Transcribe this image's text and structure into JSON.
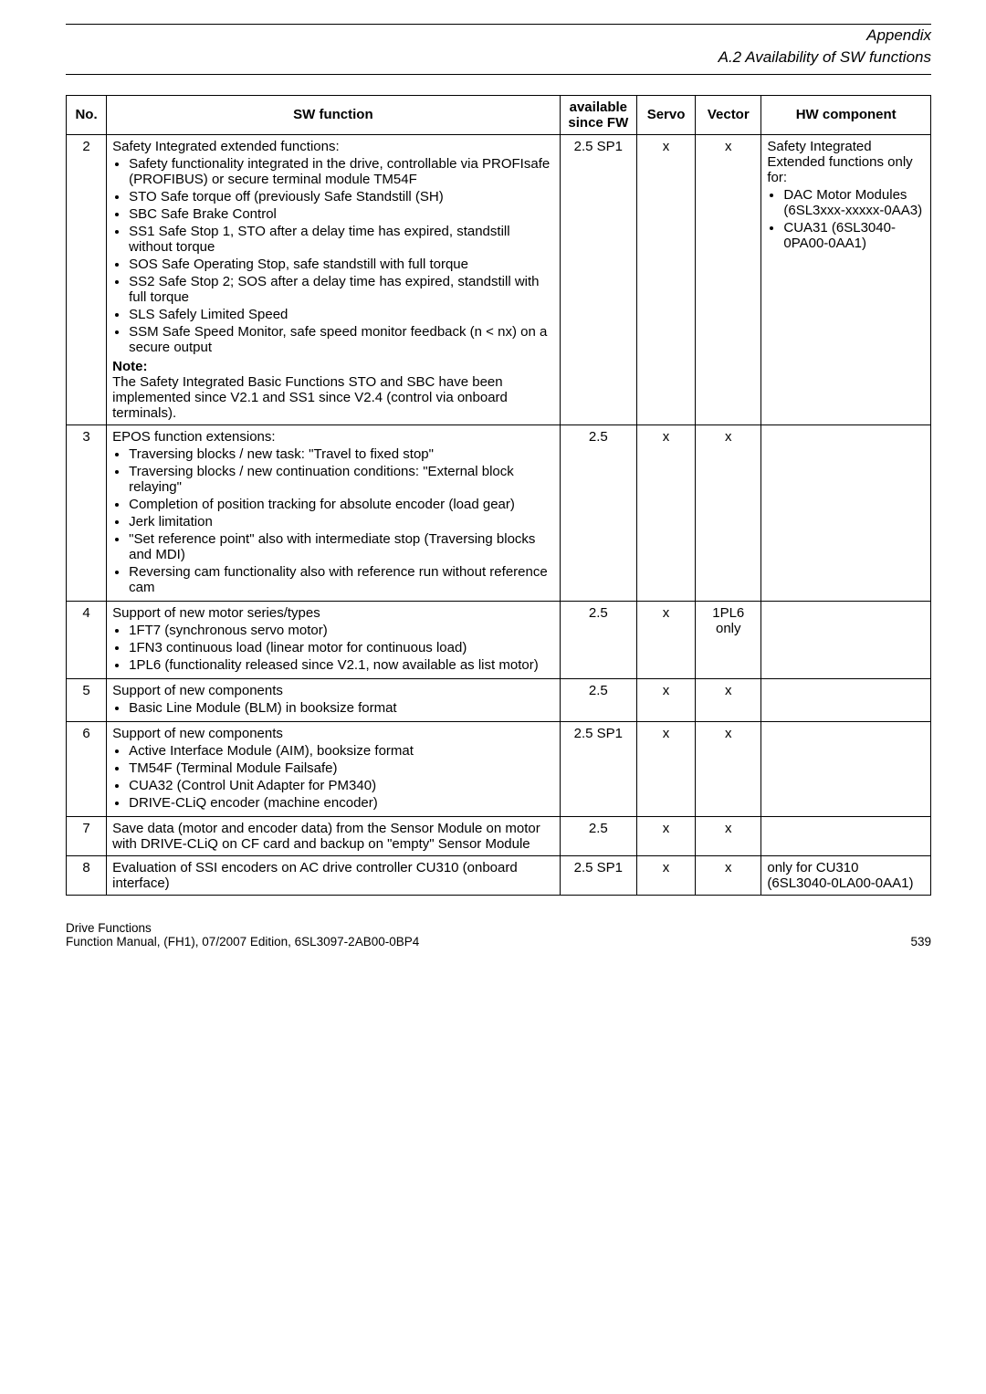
{
  "header": {
    "title": "Appendix",
    "subtitle": "A.2 Availability of SW functions"
  },
  "columns": {
    "no": "No.",
    "sw": "SW function",
    "av": "available since FW",
    "servo": "Servo",
    "vector": "Vector",
    "hw": "HW component"
  },
  "rows": {
    "r2": {
      "no": "2",
      "lead": "Safety Integrated extended functions:",
      "b1": "Safety functionality integrated in the drive, controllable via PROFIsafe (PROFIBUS) or secure terminal module TM54F",
      "b2": "STO Safe torque off (previously Safe Standstill (SH)",
      "b3": "SBC Safe Brake Control",
      "b4": "SS1 Safe Stop 1, STO after a delay time has expired, standstill without torque",
      "b5": "SOS Safe Operating Stop, safe standstill with full torque",
      "b6": "SS2 Safe Stop 2; SOS after a delay time has expired, standstill with full torque",
      "b7": "SLS Safely Limited Speed",
      "b8": "SSM Safe Speed Monitor, safe speed monitor feedback (n < nx) on a secure output",
      "noteLabel": "Note:",
      "note": "The Safety Integrated Basic Functions STO and SBC have been implemented since V2.1 and SS1 since V2.4 (control via onboard terminals).",
      "av": "2.5 SP1",
      "servo": "x",
      "vector": "x",
      "hw_lead": "Safety Integrated Extended functions only for:",
      "hw_b1": "DAC Motor Modules (6SL3xxx-xxxxx-0AA3)",
      "hw_b2": "CUA31 (6SL3040-0PA00-0AA1)"
    },
    "r3": {
      "no": "3",
      "lead": "EPOS function extensions:",
      "b1": "Traversing blocks / new task: \"Travel to fixed stop\"",
      "b2": "Traversing blocks / new continuation conditions: \"External block relaying\"",
      "b3": "Completion of position tracking for absolute encoder (load gear)",
      "b4": "Jerk limitation",
      "b5": "\"Set reference point\" also with intermediate stop (Traversing blocks and MDI)",
      "b6": "Reversing cam functionality also with reference run without reference cam",
      "av": "2.5",
      "servo": "x",
      "vector": "x",
      "hw": ""
    },
    "r4": {
      "no": "4",
      "lead": "Support of new motor series/types",
      "b1": "1FT7 (synchronous servo motor)",
      "b2": "1FN3 continuous load (linear motor for continuous load)",
      "b3": "1PL6 (functionality released since V2.1, now available as list motor)",
      "av": "2.5",
      "servo": "x",
      "vector": "1PL6 only",
      "hw": ""
    },
    "r5": {
      "no": "5",
      "lead": "Support of new components",
      "b1": "Basic Line Module (BLM) in booksize format",
      "av": "2.5",
      "servo": "x",
      "vector": "x",
      "hw": ""
    },
    "r6": {
      "no": "6",
      "lead": "Support of new components",
      "b1": "Active Interface Module (AIM), booksize format",
      "b2": "TM54F (Terminal Module Failsafe)",
      "b3": "CUA32 (Control Unit Adapter for PM340)",
      "b4": "DRIVE-CLiQ encoder (machine encoder)",
      "av": "2.5 SP1",
      "servo": "x",
      "vector": "x",
      "hw": ""
    },
    "r7": {
      "no": "7",
      "text": "Save data (motor and encoder data) from the Sensor Module on motor with DRIVE-CLiQ on CF card and backup on \"empty\" Sensor Module",
      "av": "2.5",
      "servo": "x",
      "vector": "x",
      "hw": ""
    },
    "r8": {
      "no": "8",
      "text": "Evaluation of SSI encoders on AC drive controller CU310 (onboard interface)",
      "av": "2.5 SP1",
      "servo": "x",
      "vector": "x",
      "hw": "only for CU310 (6SL3040-0LA00-0AA1)"
    }
  },
  "footer": {
    "l1": "Drive Functions",
    "l2": "Function Manual, (FH1), 07/2007 Edition, 6SL3097-2AB00-0BP4",
    "page": "539"
  }
}
